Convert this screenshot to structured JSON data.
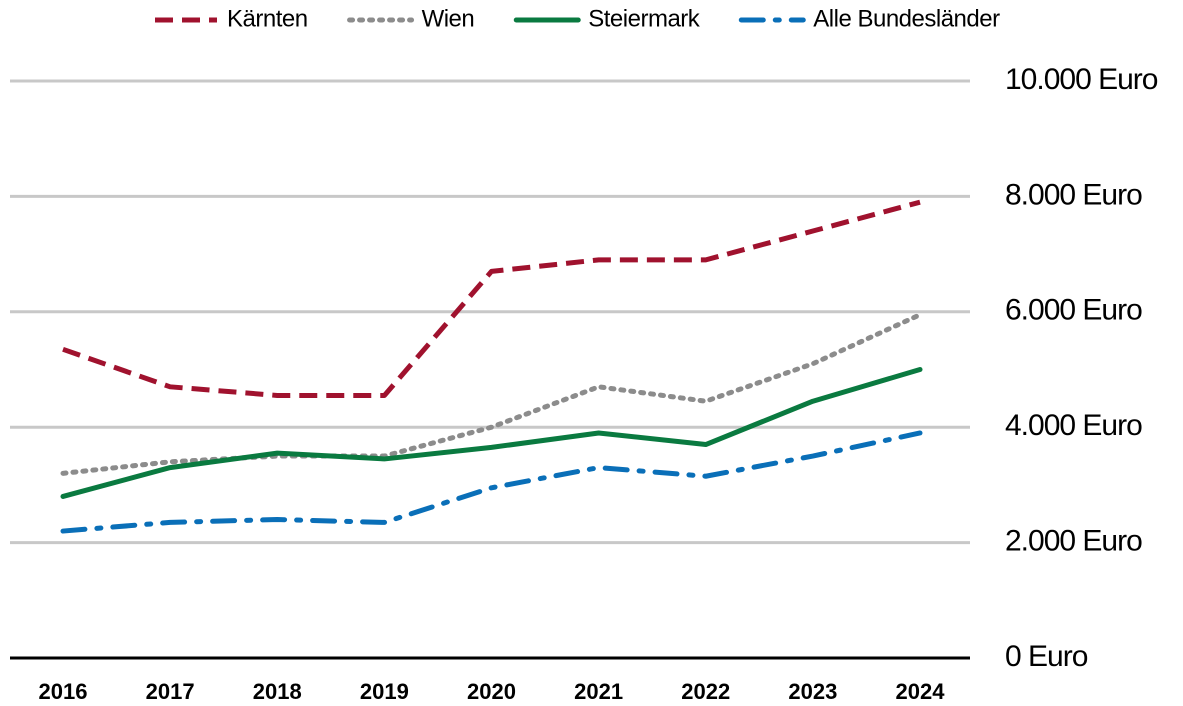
{
  "chart_data": {
    "type": "line",
    "categories": [
      "2016",
      "2017",
      "2018",
      "2019",
      "2020",
      "2021",
      "2022",
      "2023",
      "2024"
    ],
    "series": [
      {
        "name": "Kärnten",
        "color": "#a0122e",
        "dash": "dashed",
        "values": [
          5350,
          4700,
          4550,
          4550,
          6700,
          6900,
          6900,
          7400,
          7900
        ]
      },
      {
        "name": "Wien",
        "color": "#8c8c8c",
        "dash": "dotted",
        "values": [
          3200,
          3400,
          3500,
          3500,
          4000,
          4700,
          4450,
          5100,
          5950
        ]
      },
      {
        "name": "Steiermark",
        "color": "#0a7a40",
        "dash": "solid",
        "values": [
          2800,
          3300,
          3550,
          3450,
          3650,
          3900,
          3700,
          4450,
          5000
        ]
      },
      {
        "name": "Alle Bundesländer",
        "color": "#0a6fb8",
        "dash": "dashdot",
        "values": [
          2200,
          2350,
          2400,
          2350,
          2950,
          3300,
          3150,
          3500,
          3900
        ]
      }
    ],
    "ylim": [
      0,
      10000
    ],
    "yticks": [
      {
        "value": 0,
        "label": "0 Euro"
      },
      {
        "value": 2000,
        "label": "2.000 Euro"
      },
      {
        "value": 4000,
        "label": "4.000 Euro"
      },
      {
        "value": 6000,
        "label": "6.000 Euro"
      },
      {
        "value": 8000,
        "label": "8.000 Euro"
      },
      {
        "value": 10000,
        "label": "10.000 Euro"
      }
    ],
    "grid": true,
    "legend": "top"
  }
}
